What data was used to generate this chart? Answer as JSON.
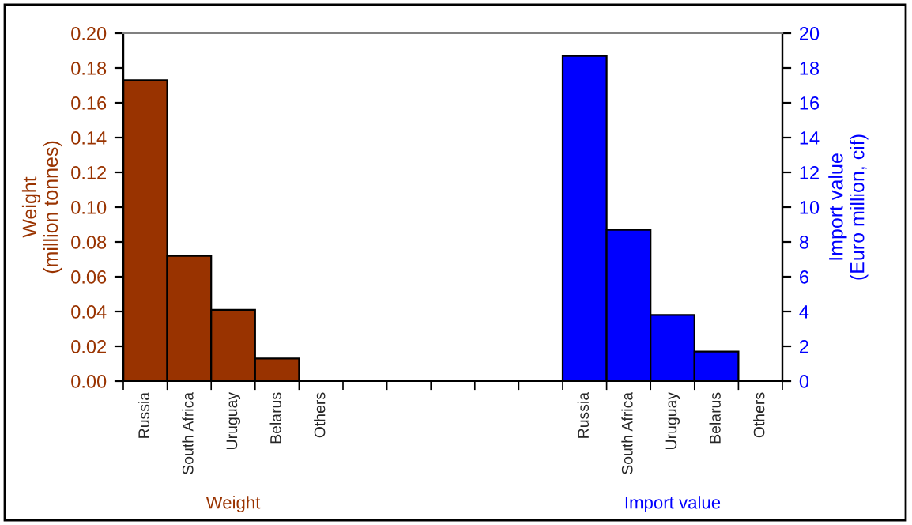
{
  "chart_data": {
    "type": "bar",
    "categories": [
      "Russia",
      "South Africa",
      "Uruguay",
      "Belarus",
      "Others",
      null,
      null,
      null,
      null,
      null,
      "Russia",
      "South Africa",
      "Uruguay",
      "Belarus",
      "Others"
    ],
    "series": [
      {
        "name": "Weight",
        "color": "#993300",
        "values": [
          0.173,
          0.072,
          0.041,
          0.013,
          0,
          null,
          null,
          null,
          null,
          null,
          null,
          null,
          null,
          null,
          null
        ]
      },
      {
        "name": "Import value",
        "color": "#0000ff",
        "axis": "y2",
        "values": [
          null,
          null,
          null,
          null,
          null,
          null,
          null,
          null,
          null,
          null,
          18.7,
          8.7,
          3.8,
          1.7,
          0
        ]
      }
    ],
    "ylabel": "Weight\n(million tonnes)",
    "y2label": "Import value\n(Euro million, cif)",
    "ylim": [
      0,
      0.2
    ],
    "yticks": [
      {
        "value": 0,
        "label": "0.00"
      },
      {
        "value": 0.02,
        "label": "0.02"
      },
      {
        "value": 0.04,
        "label": "0.04"
      },
      {
        "value": 0.06,
        "label": "0.06"
      },
      {
        "value": 0.08,
        "label": "0.08"
      },
      {
        "value": 0.1,
        "label": "0.10"
      },
      {
        "value": 0.12,
        "label": "0.12"
      },
      {
        "value": 0.14,
        "label": "0.14"
      },
      {
        "value": 0.16,
        "label": "0.16"
      },
      {
        "value": 0.18,
        "label": "0.18"
      },
      {
        "value": 0.2,
        "label": "0.20"
      }
    ],
    "y2lim": [
      0,
      20
    ],
    "y2ticks": [
      0,
      2,
      4,
      6,
      8,
      10,
      12,
      14,
      16,
      18,
      20
    ],
    "grid": false,
    "legend": false
  }
}
